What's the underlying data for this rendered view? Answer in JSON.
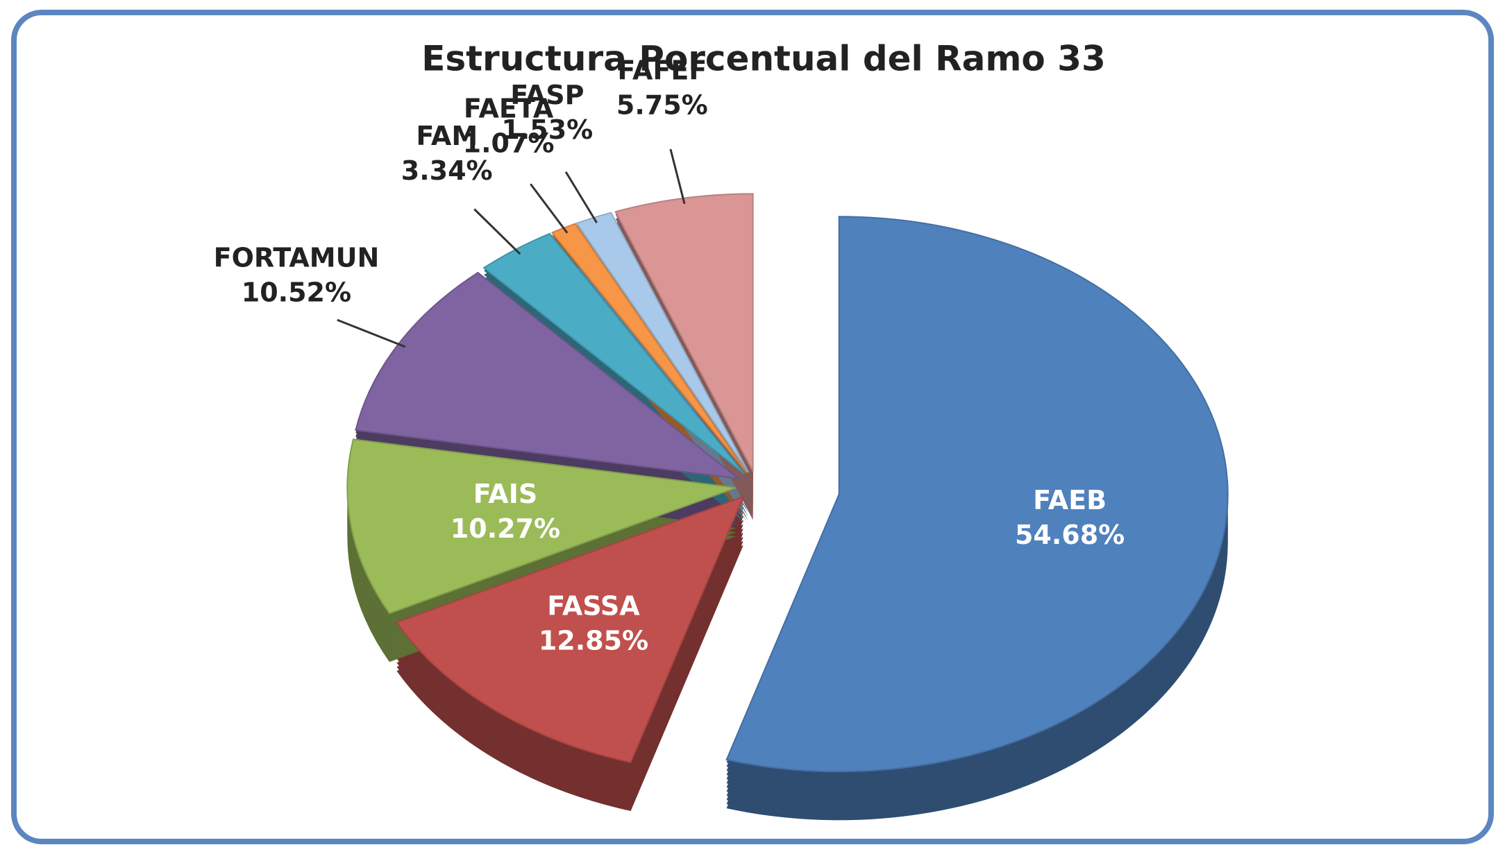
{
  "chart_data": {
    "type": "pie",
    "title": "Estructura Porcentual del Ramo 33",
    "categories": [
      "FAEB",
      "FASSA",
      "FAIS",
      "FORTAMUN",
      "FAM",
      "FAETA",
      "FASP",
      "FAFEF"
    ],
    "values": [
      54.68,
      12.85,
      10.27,
      10.52,
      3.34,
      1.07,
      1.53,
      5.75
    ],
    "value_labels": [
      "54.68%",
      "12.85%",
      "10.27%",
      "10.52%",
      "3.34%",
      "1.07%",
      "1.53%",
      "5.75%"
    ],
    "colors": [
      "#4f81bd",
      "#c0504d",
      "#9bbb59",
      "#8064a2",
      "#4bacc6",
      "#f79646",
      "#a9c9ea",
      "#d99694"
    ]
  }
}
